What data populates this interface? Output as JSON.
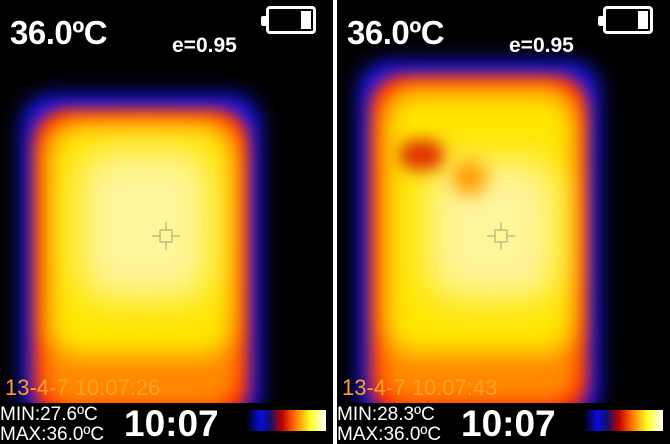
{
  "panels": [
    {
      "temperature": "36.0ºC",
      "emissivity": "e=0.95",
      "battery_level": "low",
      "timestamp": "13-4-7 10:07:26",
      "min": "MIN:27.6ºC",
      "max": "MAX:36.0ºC",
      "clock": "10:07"
    },
    {
      "temperature": "36.0ºC",
      "emissivity": "e=0.95",
      "battery_level": "low",
      "timestamp": "13-4-7 10:07:43",
      "min": "MIN:28.3ºC",
      "max": "MAX:36.0ºC",
      "clock": "10:07"
    }
  ],
  "palette": [
    "#000000",
    "#0a0ae0",
    "#c00000",
    "#ff6a00",
    "#ffff20",
    "#ffffff"
  ]
}
